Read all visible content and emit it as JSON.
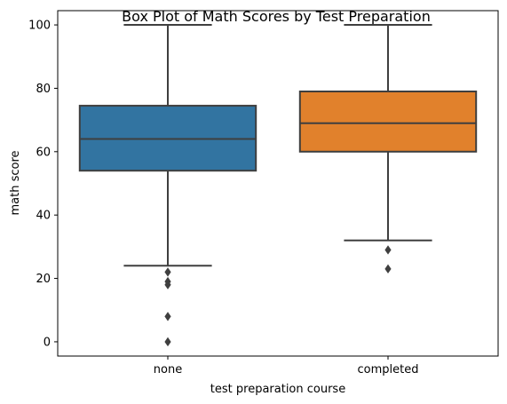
{
  "chart_data": {
    "type": "box",
    "title": "Box Plot of Math Scores by Test Preparation",
    "xlabel": "test preparation course",
    "ylabel": "math score",
    "ylim": [
      -4.5,
      104.5
    ],
    "yticks": [
      0,
      20,
      40,
      60,
      80,
      100
    ],
    "grid": false,
    "legend": "none",
    "categories": [
      "none",
      "completed"
    ],
    "boxes": [
      {
        "category": "none",
        "color": "#3274a1",
        "whisker_low": 24,
        "q1": 54,
        "median": 64,
        "q3": 74.5,
        "whisker_high": 100,
        "outliers": [
          22,
          19,
          18,
          8,
          0
        ]
      },
      {
        "category": "completed",
        "color": "#e1812c",
        "whisker_low": 32,
        "q1": 60,
        "median": 69,
        "q3": 79,
        "whisker_high": 100,
        "outliers": [
          29,
          23
        ]
      }
    ],
    "line_color": "#3f3f3f"
  }
}
